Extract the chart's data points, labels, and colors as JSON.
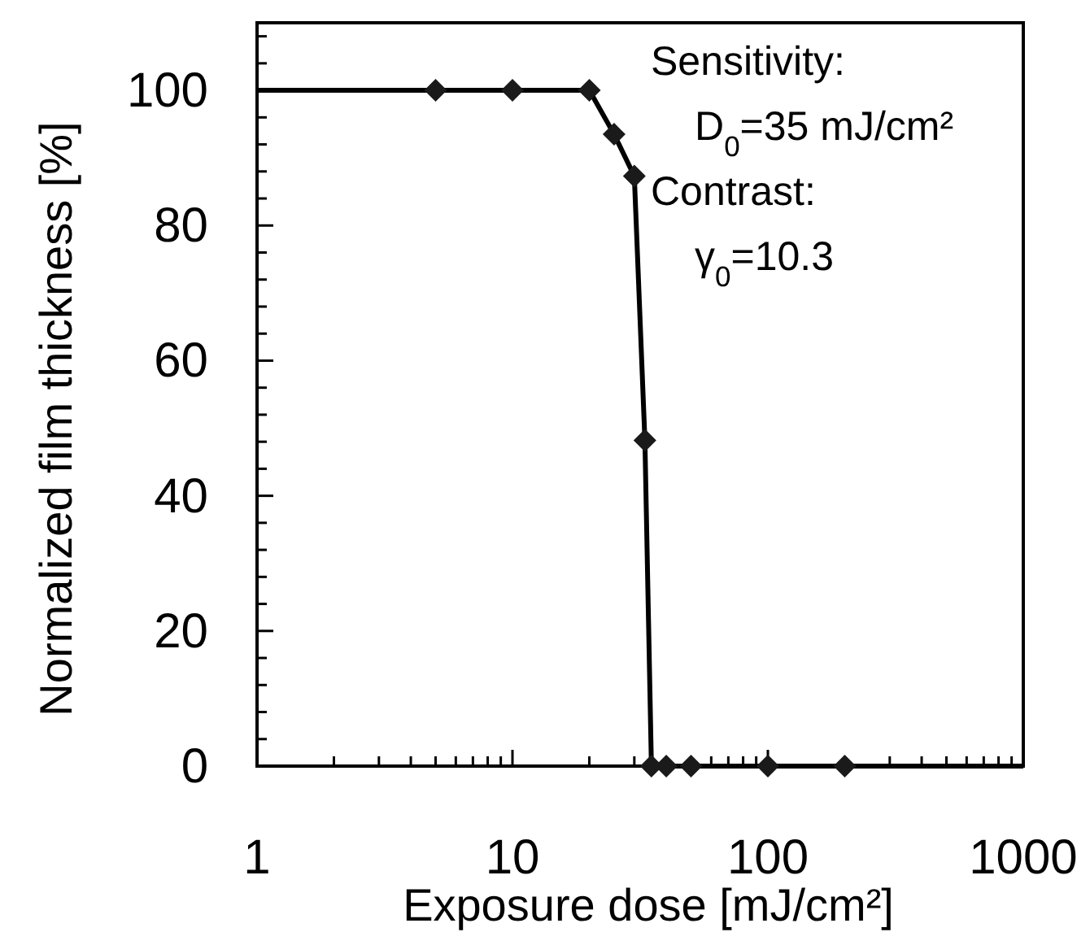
{
  "chart_data": {
    "type": "line",
    "xlabel": "Exposure dose [mJ/cm²]",
    "ylabel": "Normalized film thickness [%]",
    "log": "x",
    "xlim": [
      1,
      1000
    ],
    "ylim": [
      0,
      110
    ],
    "xticks": [
      1,
      {
        "value": 2,
        "label": null
      },
      {
        "value": 3,
        "label": null
      },
      {
        "value": 4,
        "label": null
      },
      {
        "value": 5,
        "label": null
      },
      {
        "value": 6,
        "label": null
      },
      {
        "value": 7,
        "label": null
      },
      {
        "value": 8,
        "label": null
      },
      {
        "value": 9,
        "label": null
      },
      10,
      {
        "value": 20,
        "label": null
      },
      {
        "value": 30,
        "label": null
      },
      {
        "value": 40,
        "label": null
      },
      {
        "value": 50,
        "label": null
      },
      {
        "value": 60,
        "label": null
      },
      {
        "value": 70,
        "label": null
      },
      {
        "value": 80,
        "label": null
      },
      {
        "value": 90,
        "label": null
      },
      100,
      {
        "value": 200,
        "label": null
      },
      {
        "value": 300,
        "label": null
      },
      {
        "value": 400,
        "label": null
      },
      {
        "value": 500,
        "label": null
      },
      {
        "value": 600,
        "label": null
      },
      {
        "value": 700,
        "label": null
      },
      {
        "value": 800,
        "label": null
      },
      {
        "value": 900,
        "label": null
      },
      1000
    ],
    "yticks": [
      0,
      {
        "value": 4,
        "label": null
      },
      {
        "value": 8,
        "label": null
      },
      {
        "value": 12,
        "label": null
      },
      {
        "value": 16,
        "label": null
      },
      20,
      {
        "value": 24,
        "label": null
      },
      {
        "value": 28,
        "label": null
      },
      {
        "value": 32,
        "label": null
      },
      {
        "value": 36,
        "label": null
      },
      40,
      {
        "value": 44,
        "label": null
      },
      {
        "value": 48,
        "label": null
      },
      {
        "value": 52,
        "label": null
      },
      {
        "value": 56,
        "label": null
      },
      60,
      {
        "value": 64,
        "label": null
      },
      {
        "value": 68,
        "label": null
      },
      {
        "value": 72,
        "label": null
      },
      {
        "value": 76,
        "label": null
      },
      80,
      {
        "value": 84,
        "label": null
      },
      {
        "value": 88,
        "label": null
      },
      {
        "value": 92,
        "label": null
      },
      {
        "value": 96,
        "label": null
      },
      100,
      {
        "value": 104,
        "label": null
      },
      {
        "value": 108,
        "label": null
      }
    ],
    "grid": false,
    "series": [
      {
        "marker": "none",
        "line_style": "solid",
        "color": "#000000",
        "x": [
          1,
          5,
          10,
          20,
          25,
          30,
          33,
          35,
          40,
          50,
          100,
          200,
          1000
        ],
        "values": [
          100,
          100,
          100,
          100,
          93.5,
          87.3,
          48.2,
          0,
          0,
          0,
          0,
          0,
          0
        ]
      },
      {
        "type": "scatter",
        "marker": "diamond",
        "color": "#1a1a1a",
        "x": [
          5,
          10,
          20,
          25,
          30,
          33,
          35,
          40,
          50,
          100,
          200
        ],
        "values": [
          100,
          100,
          100,
          93.5,
          87.3,
          48.2,
          0,
          0,
          0,
          0,
          0
        ]
      }
    ],
    "annotations": [
      "Sensitivity:",
      "D$_{0}$=35 mJ/cm²",
      "Contrast:",
      "γ$_{0}$=10.3"
    ]
  }
}
